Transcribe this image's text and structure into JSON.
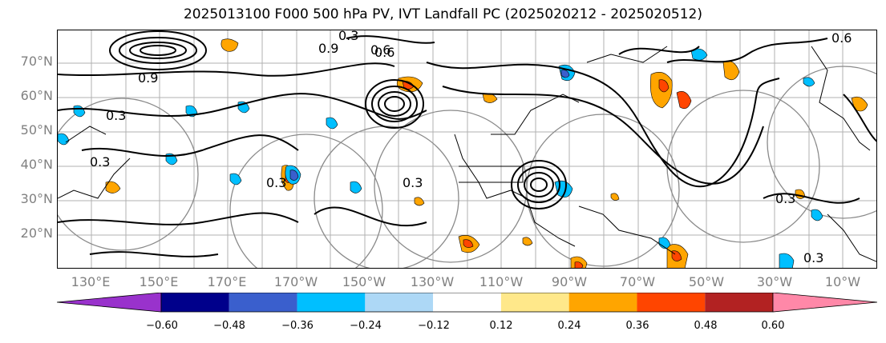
{
  "title": "2025013100 F000 500 hPa PV, IVT Landfall PC (2025020212 - 2025020512)",
  "lat_labels": [
    "70°N",
    "60°N",
    "50°N",
    "40°N",
    "30°N",
    "20°N"
  ],
  "lon_labels": [
    "130°E",
    "150°E",
    "170°E",
    "170°W",
    "150°W",
    "130°W",
    "110°W",
    "90°W",
    "70°W",
    "50°W",
    "30°W",
    "10°W"
  ],
  "contour_labels": [
    "0.3",
    "0.6",
    "0.9",
    "0.3",
    "0.9",
    "0.6",
    "0.6",
    "0.3",
    "0.3",
    "0.3",
    "0.3",
    "0.3"
  ],
  "colorbar": {
    "ticks": [
      "−0.60",
      "−0.48",
      "−0.36",
      "−0.24",
      "−0.12",
      "0.12",
      "0.24",
      "0.36",
      "0.48",
      "0.60"
    ],
    "colors": [
      "#9932cc",
      "#00008b",
      "#3a5fcd",
      "#00bfff",
      "#add8f6",
      "#ffffff",
      "#ffe88a",
      "#ffa500",
      "#ff4500",
      "#b22222",
      "#ff88a8"
    ]
  }
}
